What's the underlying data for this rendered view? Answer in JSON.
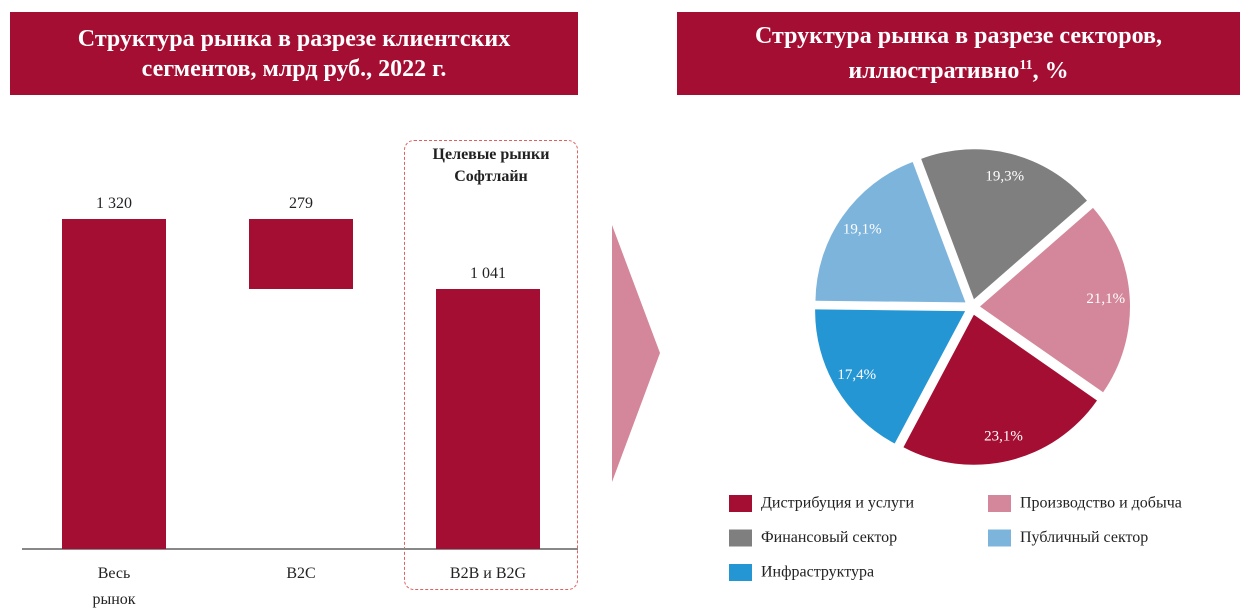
{
  "charts": [
    {
      "chart_data": {
        "type": "waterfall",
        "title": "Структура рынка в разрезе клиентских сегментов, млрд руб., 2022 г.",
        "categories": [
          "Весь рынок",
          "B2C",
          "B2B и B2G"
        ],
        "values": [
          1320,
          279,
          1041
        ],
        "value_labels": [
          "1 320",
          "279",
          "1 041"
        ],
        "measure": [
          "absolute",
          "decrease",
          "absolute"
        ],
        "color": "#a50e33",
        "ylim": [
          0,
          1400
        ],
        "annotation": "Целевые рынки Софтлайн"
      }
    },
    {
      "chart_data": {
        "type": "pie",
        "title": "Структура рынка в разрезе секторов, иллюстративно",
        "title_note": "11",
        "title_suffix": ", %",
        "categories": [
          "Дистрибуция и услуги",
          "Производство и добыча",
          "Финансовый сектор",
          "Публичный сектор",
          "Инфраструктура"
        ],
        "values": [
          23.1,
          21.1,
          19.3,
          19.1,
          17.4
        ],
        "value_labels": [
          "23,1%",
          "21,1%",
          "19,3%",
          "19,1%",
          "17,4%"
        ],
        "colors": [
          "#a50e33",
          "#d4879a",
          "#7f7f7f",
          "#7db4dc",
          "#2596d4"
        ],
        "start_angle": 208,
        "direction": "counterclockwise"
      }
    }
  ]
}
